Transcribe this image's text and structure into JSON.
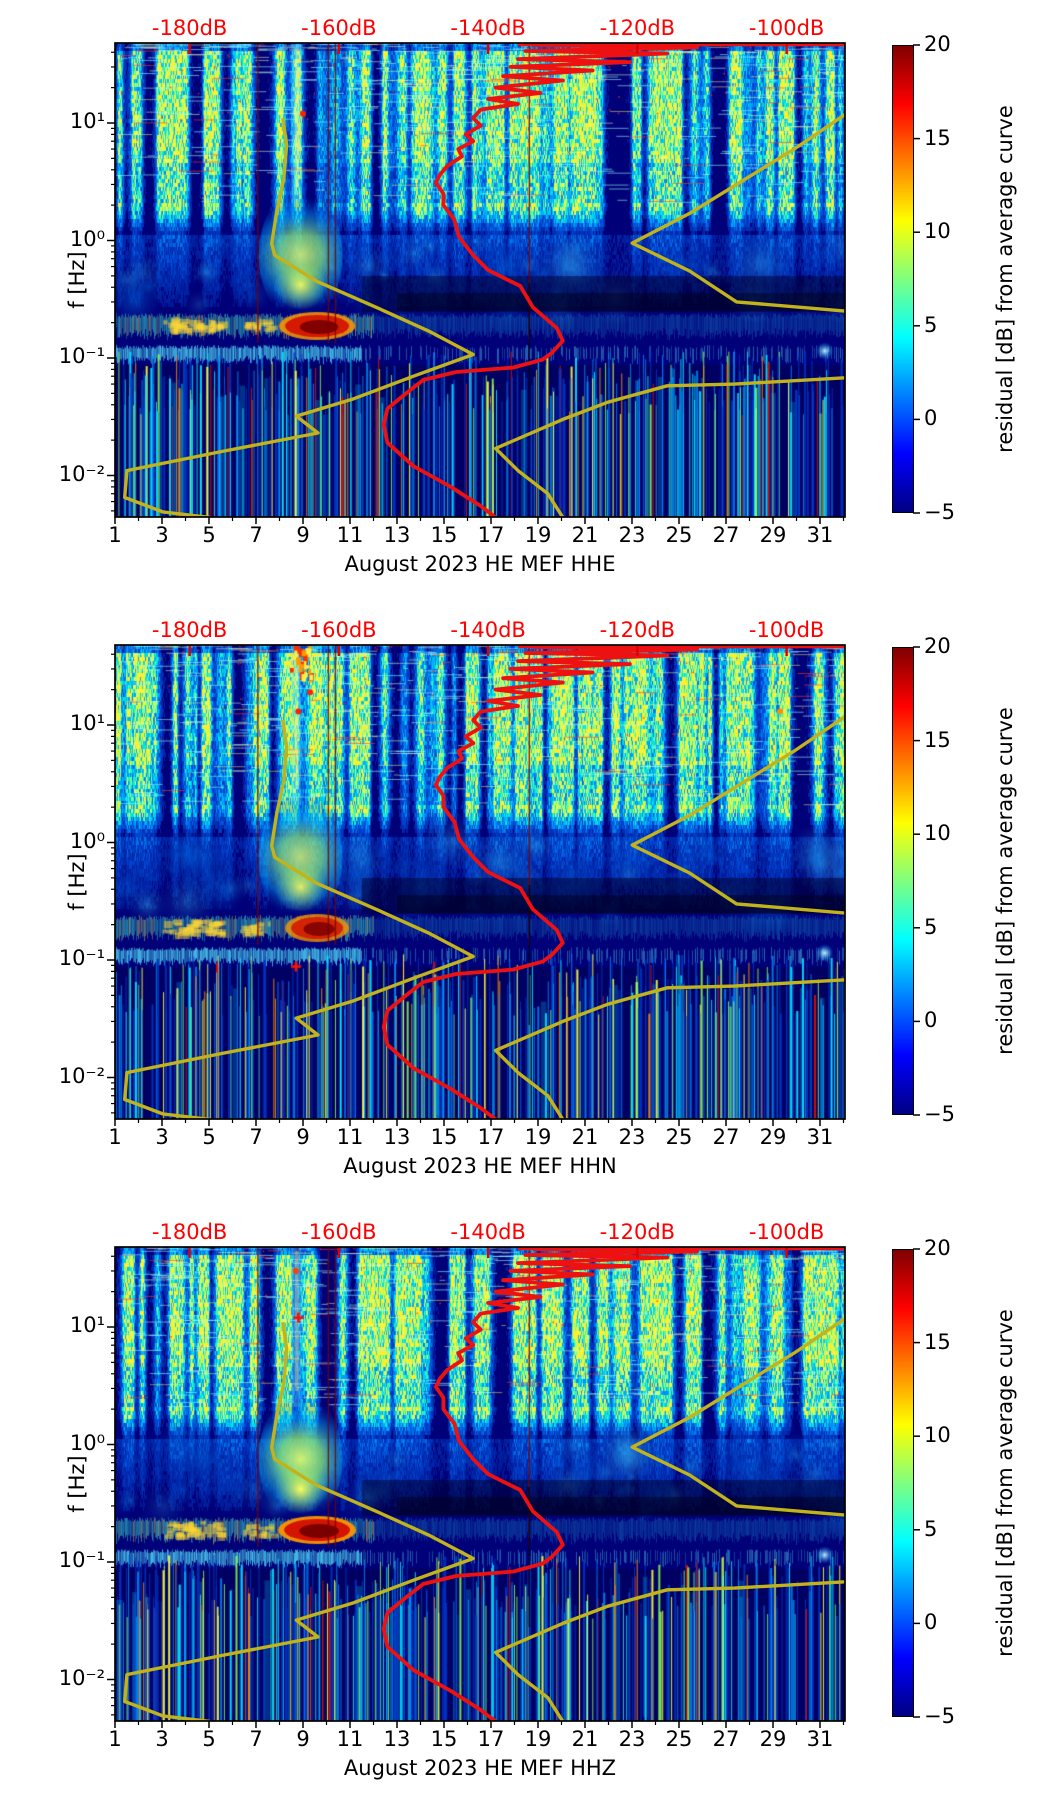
{
  "chart_data": {
    "type": "heatmap",
    "description": "Three stacked seismic probabilistic spectrogram panels (residual power vs day-of-month and frequency) with overlaid average PSD curves",
    "panels": [
      {
        "channel": "HHE",
        "xlabel": "August 2023 HE MEF  HHE"
      },
      {
        "channel": "HHN",
        "xlabel": "August 2023 HE MEF  HHN"
      },
      {
        "channel": "HHZ",
        "xlabel": "August 2023 HE MEF  HHZ"
      }
    ],
    "x_axis": {
      "ticks": [
        1,
        3,
        5,
        7,
        9,
        11,
        13,
        15,
        17,
        19,
        21,
        23,
        25,
        27,
        29,
        31
      ],
      "minor_ticks": [
        2,
        4,
        6,
        8,
        10,
        12,
        14,
        16,
        18,
        20,
        22,
        24,
        26,
        28,
        30,
        32
      ],
      "range_days": [
        1,
        32
      ]
    },
    "y_axis": {
      "label": "f [Hz]",
      "scale": "log",
      "tick_labels": [
        "10¹",
        "10⁰",
        "10⁻¹",
        "10⁻²"
      ],
      "tick_values": [
        10,
        1,
        0.1,
        0.01
      ],
      "range_hz": [
        0.0044,
        48
      ]
    },
    "top_axis": {
      "unit": "dB",
      "labels": [
        "-180dB",
        "-160dB",
        "-140dB",
        "-120dB",
        "-100dB"
      ],
      "values": [
        -180,
        -160,
        -140,
        -120,
        -100
      ],
      "range_db": [
        -190,
        -92
      ],
      "color": "#ff0000"
    },
    "colorbar": {
      "label": "residual [dB] from average curve",
      "tick_labels": [
        "20",
        "15",
        "10",
        "5",
        "0",
        "−5"
      ],
      "tick_values": [
        20,
        15,
        10,
        5,
        0,
        -5
      ],
      "range": [
        -5,
        20
      ],
      "colormap": "jet",
      "stops": [
        [
          0,
          "#000083"
        ],
        [
          0.125,
          "#0000ff"
        ],
        [
          0.375,
          "#00ffff"
        ],
        [
          0.625,
          "#ffff00"
        ],
        [
          0.875,
          "#ff0000"
        ],
        [
          1,
          "#800000"
        ]
      ]
    },
    "overlay_curves": {
      "red_average_psd": {
        "color": "#ee1111",
        "points_db_hz": [
          [
            -134,
            46
          ],
          [
            -112,
            44
          ],
          [
            -135,
            41
          ],
          [
            -116,
            39
          ],
          [
            -136,
            35
          ],
          [
            -121,
            33
          ],
          [
            -137,
            30
          ],
          [
            -126,
            28
          ],
          [
            -138,
            25
          ],
          [
            -130,
            23
          ],
          [
            -139,
            20
          ],
          [
            -133,
            18
          ],
          [
            -140,
            16
          ],
          [
            -136,
            14.5
          ],
          [
            -141,
            13
          ],
          [
            -142,
            11
          ],
          [
            -141,
            9.5
          ],
          [
            -143,
            8
          ],
          [
            -142,
            7
          ],
          [
            -144,
            6
          ],
          [
            -143.5,
            5.2
          ],
          [
            -145.5,
            4.3
          ],
          [
            -146.5,
            3.6
          ],
          [
            -147,
            3.1
          ],
          [
            -146,
            2.5
          ],
          [
            -146,
            2
          ],
          [
            -144.5,
            1.5
          ],
          [
            -143.9,
            1.07
          ],
          [
            -142,
            0.75
          ],
          [
            -140,
            0.56
          ],
          [
            -135.7,
            0.41
          ],
          [
            -134,
            0.27
          ],
          [
            -130.8,
            0.18
          ],
          [
            -130,
            0.14
          ],
          [
            -131.5,
            0.11
          ],
          [
            -132.7,
            0.097
          ],
          [
            -136.6,
            0.083
          ],
          [
            -144.3,
            0.076
          ],
          [
            -148.7,
            0.065
          ],
          [
            -151,
            0.05
          ],
          [
            -153.5,
            0.037
          ],
          [
            -154,
            0.027
          ],
          [
            -153.5,
            0.019
          ],
          [
            -150,
            0.012
          ],
          [
            -145,
            0.008
          ],
          [
            -141,
            0.0055
          ],
          [
            -139,
            0.0044
          ]
        ]
      },
      "red_top_segment": {
        "color": "#ee1111",
        "f_hz": 47.5,
        "db_range": [
          -136,
          -92
        ]
      },
      "olive_low_model": {
        "color": "#c2b21c",
        "points_db_hz": [
          [
            -167.5,
            11
          ],
          [
            -167,
            6.5
          ],
          [
            -167.4,
            3.3
          ],
          [
            -168.3,
            1.8
          ],
          [
            -169,
            0.94
          ],
          [
            -168.6,
            0.75
          ],
          [
            -163,
            0.45
          ],
          [
            -155,
            0.27
          ],
          [
            -148,
            0.17
          ],
          [
            -142,
            0.107
          ],
          [
            -150,
            0.07
          ],
          [
            -158,
            0.045
          ],
          [
            -165.7,
            0.032
          ],
          [
            -162.8,
            0.023
          ],
          [
            -175.7,
            0.016
          ],
          [
            -188.4,
            0.011
          ],
          [
            -188.7,
            0.0065
          ],
          [
            -183.6,
            0.0049
          ],
          [
            -177.3,
            0.0044
          ]
        ]
      },
      "olive_high_model_upper": {
        "color": "#c2b21c",
        "points_db_hz": [
          [
            -92,
            12
          ],
          [
            -99,
            6
          ],
          [
            -106.7,
            3
          ],
          [
            -113,
            1.7
          ],
          [
            -120.7,
            0.95
          ],
          [
            -113,
            0.55
          ],
          [
            -106.7,
            0.3
          ],
          [
            -92,
            0.25
          ]
        ]
      },
      "olive_high_model_lower": {
        "color": "#c2b21c",
        "points_db_hz": [
          [
            -92,
            0.068
          ],
          [
            -107,
            0.06
          ],
          [
            -116,
            0.058
          ],
          [
            -124,
            0.042
          ],
          [
            -130,
            0.03
          ],
          [
            -139,
            0.017
          ],
          [
            -136,
            0.011
          ],
          [
            -132,
            0.007
          ],
          [
            -130,
            0.0044
          ]
        ]
      }
    },
    "heatmap_features": {
      "storm_patch": {
        "days": [
          7.2,
          10.8
        ],
        "f_hz": [
          0.25,
          3
        ],
        "peak_residual_db": 12
      },
      "hot_blob": {
        "days": [
          8.3,
          10.8
        ],
        "f_hz": [
          0.14,
          0.23
        ],
        "peak_residual_db": 20
      },
      "microseism_band": {
        "f_hz": [
          0.12,
          0.25
        ]
      },
      "quiet_dark_band": {
        "days": [
          11.5,
          32
        ],
        "f_hz": [
          0.2,
          0.5
        ]
      },
      "artifact_line_days": [
        7.05,
        10.05,
        10.35,
        18.6
      ],
      "panel_details": {
        "HHE": {
          "seed": 11,
          "blob_rx": 32,
          "blob_strength": 1.0,
          "storm": 1.0,
          "top_cluster": false,
          "hotspots": [
            {
              "day": 9.0,
              "f": 12,
              "shape": "dot",
              "color": "#ff2000"
            }
          ]
        },
        "HHN": {
          "seed": 22,
          "blob_rx": 26,
          "blob_strength": 0.9,
          "storm": 0.95,
          "top_cluster": true,
          "hotspots": [
            {
              "day": 8.8,
              "f": 13,
              "shape": "dot",
              "color": "#ff2000"
            },
            {
              "day": 9.3,
              "f": 19,
              "shape": "dot",
              "color": "#ff2000"
            },
            {
              "day": 29.3,
              "f": 13,
              "shape": "dot",
              "color": "#ff9000"
            },
            {
              "day": 8.7,
              "f": 0.088,
              "shape": "cross",
              "color": "#ff1000"
            }
          ]
        },
        "HHZ": {
          "seed": 33,
          "blob_rx": 33,
          "blob_strength": 1.1,
          "storm": 1.1,
          "top_cluster": false,
          "hotspots": [
            {
              "day": 8.8,
              "f": 12,
              "shape": "cross",
              "color": "#ff1000"
            },
            {
              "day": 8.7,
              "f": 30,
              "shape": "dot",
              "color": "#ff4000"
            }
          ]
        }
      }
    }
  }
}
